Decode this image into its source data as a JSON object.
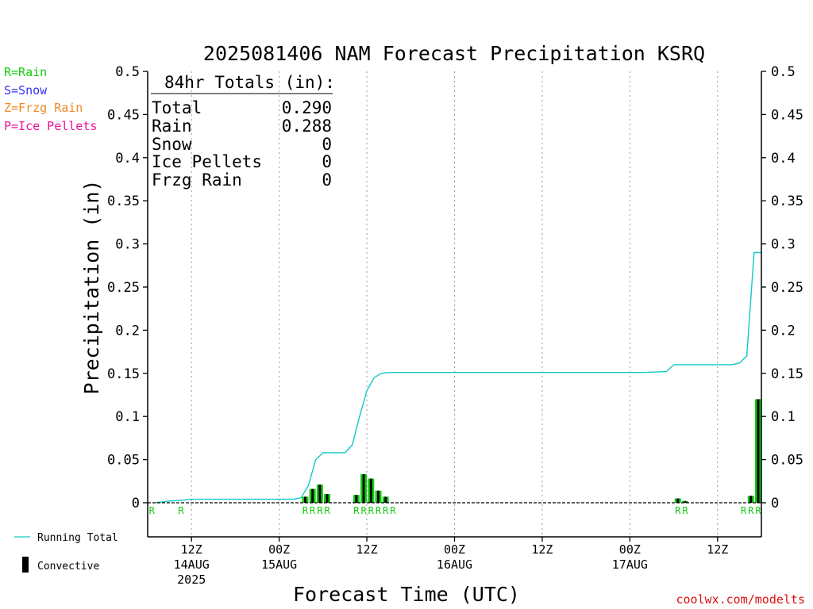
{
  "chart_data": {
    "type": "bar",
    "title": "2025081406 NAM Forecast Precipitation KSRQ",
    "xlabel": "Forecast Time (UTC)",
    "ylabel": "Precipitation (in)",
    "ylim": [
      0,
      0.5
    ],
    "y_ticks": [
      "0",
      "0.05",
      "0.1",
      "0.15",
      "0.2",
      "0.25",
      "0.3",
      "0.35",
      "0.4",
      "0.45",
      "0.5"
    ],
    "x_range_hours": [
      0,
      84
    ],
    "x_ticks": [
      {
        "hour": 6,
        "lines": [
          "12Z",
          "14AUG",
          "2025"
        ]
      },
      {
        "hour": 18,
        "lines": [
          "00Z",
          "15AUG"
        ]
      },
      {
        "hour": 30,
        "lines": [
          "12Z"
        ]
      },
      {
        "hour": 42,
        "lines": [
          "00Z",
          "16AUG"
        ]
      },
      {
        "hour": 54,
        "lines": [
          "12Z"
        ]
      },
      {
        "hour": 66,
        "lines": [
          "00Z",
          "17AUG"
        ]
      },
      {
        "hour": 78,
        "lines": [
          "12Z"
        ]
      }
    ],
    "grid": "vertical dotted",
    "running_total": {
      "name": "Running Total",
      "x": [
        1,
        3,
        5,
        6,
        7,
        10,
        14,
        17,
        18,
        19,
        20,
        21,
        22,
        23,
        24,
        25,
        26,
        27,
        28,
        29,
        30,
        31,
        32,
        33,
        34,
        37,
        45,
        55,
        68,
        71,
        72,
        73,
        76,
        80,
        81,
        82,
        83,
        84
      ],
      "y": [
        0.0,
        0.002,
        0.003,
        0.004,
        0.004,
        0.004,
        0.004,
        0.004,
        0.004,
        0.004,
        0.004,
        0.006,
        0.02,
        0.05,
        0.058,
        0.058,
        0.058,
        0.058,
        0.067,
        0.1,
        0.13,
        0.145,
        0.15,
        0.151,
        0.151,
        0.151,
        0.151,
        0.151,
        0.151,
        0.152,
        0.16,
        0.16,
        0.16,
        0.16,
        0.162,
        0.17,
        0.29,
        0.29
      ]
    },
    "bars": {
      "name": "hourly precipitation",
      "x": [
        22,
        23,
        24,
        25,
        29,
        30,
        31,
        32,
        33,
        73,
        74,
        83,
        84
      ],
      "total": [
        0.007,
        0.016,
        0.021,
        0.01,
        0.009,
        0.033,
        0.028,
        0.014,
        0.007,
        0.005,
        0.002,
        0.008,
        0.12
      ],
      "convective": [
        0.004,
        0.008,
        0.011,
        0.004,
        0.004,
        0.016,
        0.014,
        0.007,
        0.003,
        0.003,
        0.001,
        0.004,
        0.002
      ]
    },
    "ptype_markers": [
      {
        "hour": 1,
        "label": "R"
      },
      {
        "hour": 5,
        "label": "R"
      },
      {
        "hour": 22,
        "label": "R"
      },
      {
        "hour": 23,
        "label": "R"
      },
      {
        "hour": 24,
        "label": "R"
      },
      {
        "hour": 25,
        "label": "R"
      },
      {
        "hour": 29,
        "label": "R"
      },
      {
        "hour": 30,
        "label": "R"
      },
      {
        "hour": 31,
        "label": "R"
      },
      {
        "hour": 32,
        "label": "R"
      },
      {
        "hour": 33,
        "label": "R"
      },
      {
        "hour": 34,
        "label": "R"
      },
      {
        "hour": 73,
        "label": "R"
      },
      {
        "hour": 74,
        "label": "R"
      },
      {
        "hour": 82,
        "label": "R"
      },
      {
        "hour": 83,
        "label": "R"
      },
      {
        "hour": 84,
        "label": "R"
      }
    ],
    "colors": {
      "rain": "#11cc11",
      "snow": "#3333ee",
      "frzg_rain": "#ee8822",
      "ice_pellets": "#ee1199",
      "running_total": "#11c8c8",
      "convective": "#000000",
      "axis": "#000000"
    }
  },
  "totals_box": {
    "heading": "84hr Totals (in):",
    "rows": [
      {
        "label": "Total",
        "value": "0.290"
      },
      {
        "label": "Rain",
        "value": "0.288"
      },
      {
        "label": "Snow",
        "value": "0"
      },
      {
        "label": "Ice Pellets",
        "value": "0"
      },
      {
        "label": "Frzg Rain",
        "value": "0"
      }
    ]
  },
  "ptype_legend": {
    "rain": "R=Rain",
    "snow": "S=Snow",
    "frzg_rain": "Z=Frzg Rain",
    "ice_pellets": "P=Ice Pellets"
  },
  "bottom_legend": {
    "running_total": "Running Total",
    "convective": "Convective"
  },
  "credit": "coolwx.com/modelts"
}
